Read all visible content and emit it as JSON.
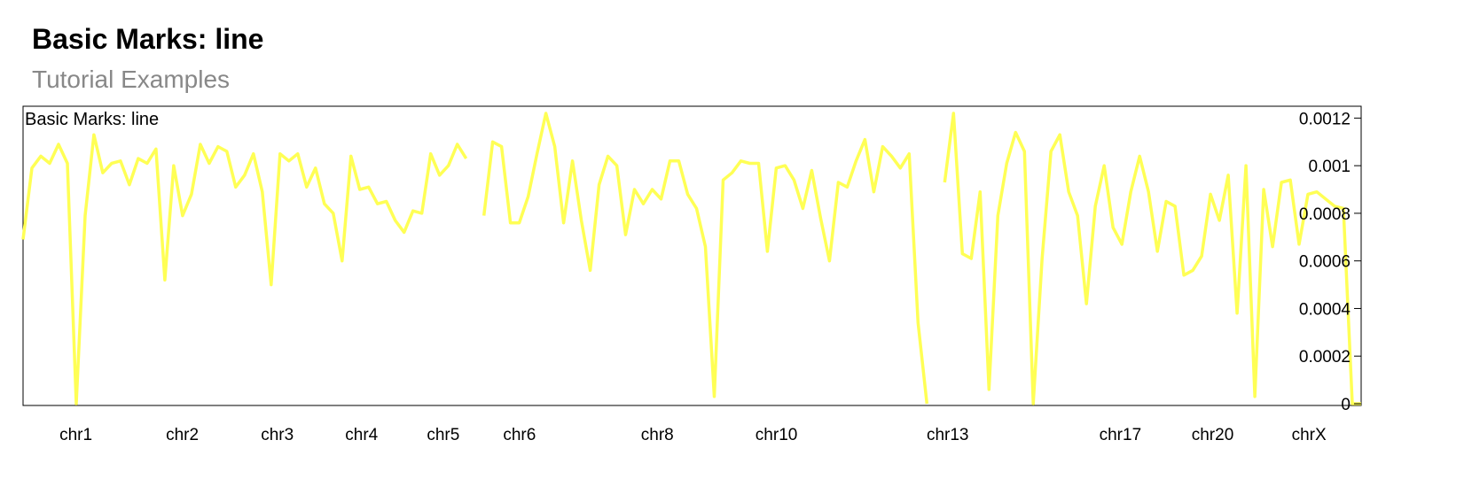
{
  "header": {
    "title": "Basic Marks: line",
    "subtitle": "Tutorial Examples"
  },
  "chart_data": {
    "type": "line",
    "title": "Basic Marks: line",
    "color": "#ffff55",
    "xlabel": "",
    "ylabel": "",
    "ylim": [
      0,
      0.00122
    ],
    "y_ticks": [
      "0",
      "0.0002",
      "0.0004",
      "0.0006",
      "0.0008",
      "0.001",
      "0.0012"
    ],
    "x_labels": [
      "chr1",
      "chr2",
      "chr3",
      "chr4",
      "chr5",
      "chr6",
      "chr8",
      "chr10",
      "chr13",
      "chr17",
      "chr20",
      "chrX"
    ],
    "series": [
      {
        "values": [
          0.00069,
          0.00099,
          0.00104,
          0.00101,
          0.00109,
          0.00101,
          0.0,
          0.00079,
          0.00113,
          0.00097,
          0.00101,
          0.00102,
          0.00092,
          0.00103,
          0.00101,
          0.00107,
          0.00052,
          0.001,
          0.00079,
          0.00088,
          0.00109,
          0.00101,
          0.00108,
          0.00106,
          0.00091,
          0.00096,
          0.00105,
          0.00089,
          0.0005,
          0.00105,
          0.00102,
          0.00105,
          0.00091,
          0.00099,
          0.00084,
          0.0008,
          0.0006,
          0.00104,
          0.0009,
          0.00091,
          0.00084,
          0.00085,
          0.00077,
          0.00072,
          0.00081,
          0.0008,
          0.00105,
          0.00096,
          0.001,
          0.00109,
          0.00103,
          null,
          0.00079,
          0.0011,
          0.00108,
          0.00076,
          0.00076,
          0.00087,
          0.00105,
          0.00122,
          0.00108,
          0.00076,
          0.00102,
          0.00077,
          0.00056,
          0.00092,
          0.00104,
          0.001,
          0.00071,
          0.0009,
          0.00084,
          0.0009,
          0.00086,
          0.00102,
          0.00102,
          0.00088,
          0.00082,
          0.00066,
          3e-05,
          0.00094,
          0.00097,
          0.00102,
          0.00101,
          0.00101,
          0.00064,
          0.00099,
          0.001,
          0.00094,
          0.00082,
          0.00098,
          0.00078,
          0.0006,
          0.00093,
          0.00091,
          0.00102,
          0.00111,
          0.00089,
          0.00108,
          0.00104,
          0.00099,
          0.00105,
          0.00034,
          0.0,
          null,
          0.00093,
          0.00122,
          0.00063,
          0.00061,
          0.00089,
          6e-05,
          0.00079,
          0.00101,
          0.00114,
          0.00106,
          0.0,
          0.00061,
          0.00106,
          0.00113,
          0.00089,
          0.00079,
          0.00042,
          0.00083,
          0.001,
          0.00074,
          0.00067,
          0.00089,
          0.00104,
          0.00089,
          0.00064,
          0.00085,
          0.00083,
          0.00054,
          0.00056,
          0.00062,
          0.00088,
          0.00077,
          0.00096,
          0.00038,
          0.001,
          3e-05,
          0.0009,
          0.00066,
          0.00093,
          0.00094,
          0.00067,
          0.00088,
          0.00089,
          0.00086,
          0.00083,
          0.00082,
          0.0,
          0.0
        ]
      }
    ]
  }
}
